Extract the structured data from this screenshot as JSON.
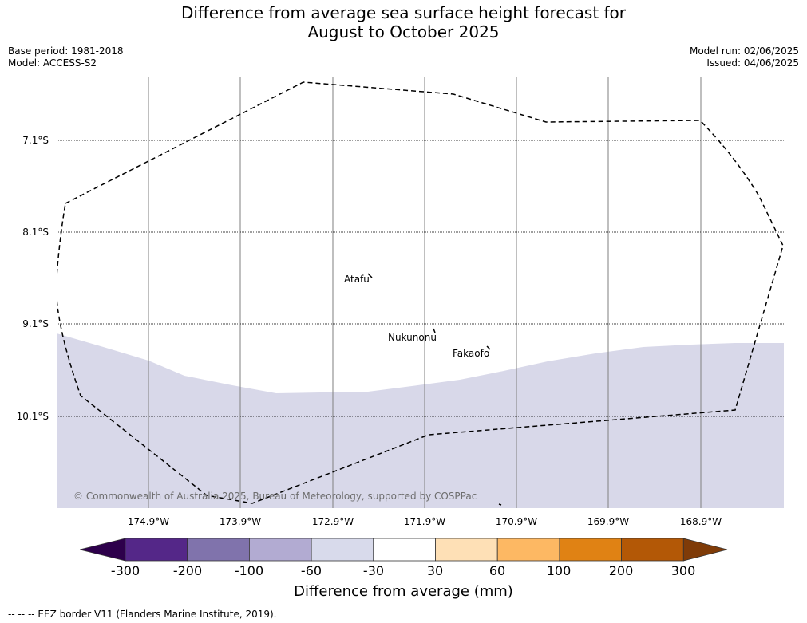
{
  "title": {
    "line1": "Difference from average sea surface height forecast for",
    "line2": "August to October 2025"
  },
  "meta": {
    "base_period": "Base period: 1981-2018",
    "model": "Model: ACCESS-S2",
    "model_run": "Model run: 02/06/2025",
    "issued": "Issued: 04/06/2025"
  },
  "map": {
    "latitudes": [
      "7.1°S",
      "8.1°S",
      "9.1°S",
      "10.1°S"
    ],
    "longitudes": [
      "174.9°W",
      "173.9°W",
      "172.9°W",
      "171.9°W",
      "170.9°W",
      "169.9°W",
      "168.9°W"
    ],
    "places": {
      "atafu": "Atafu",
      "nukunonu": "Nukunonu",
      "fakaofo": "Fakaofo"
    },
    "credit": "© Commonwealth of Australia 2025, Bureau of Meteorology, supported by COSPPac",
    "shaded_band_class": "-60 to -30",
    "colors": {
      "shaded_band": "#d8d8e9",
      "eez_line": "#000000",
      "meridian": "#7f7f7f"
    }
  },
  "colorbar": {
    "title": "Difference from average (mm)",
    "ticks": [
      "-300",
      "-200",
      "-100",
      "-60",
      "-30",
      "30",
      "60",
      "100",
      "200",
      "300"
    ],
    "colors": [
      "#2d004b",
      "#542788",
      "#8073ac",
      "#b2abd2",
      "#d8daeb",
      "#ffffff",
      "#fee0b6",
      "#fdb863",
      "#e08214",
      "#b35806",
      "#7f3b08"
    ]
  },
  "legend": {
    "eez": "-- -- -- EEZ border V11 (Flanders Marine Institute, 2019)."
  }
}
